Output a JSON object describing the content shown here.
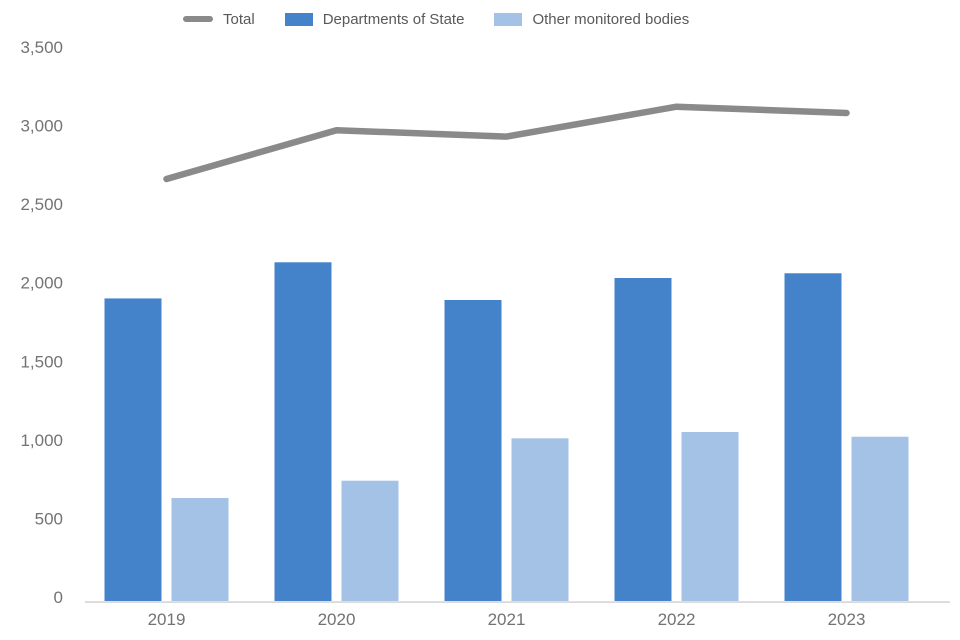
{
  "legend": {
    "items": [
      {
        "label": "Total",
        "swatch": "line",
        "color": "#8A8A8A"
      },
      {
        "label": "Departments of State",
        "swatch": "rect",
        "color": "#4483C9"
      },
      {
        "label": "Other monitored bodies",
        "swatch": "rect",
        "color": "#A3C2E6"
      }
    ]
  },
  "chart_data": {
    "type": "combo-bar-line",
    "categories": [
      "2019",
      "2020",
      "2021",
      "2022",
      "2023"
    ],
    "series": [
      {
        "name": "Total",
        "type": "line",
        "color": "#8A8A8A",
        "values": [
          2660,
          2970,
          2930,
          3120,
          3080
        ]
      },
      {
        "name": "Departments of State",
        "type": "bar",
        "color": "#4483C9",
        "values": [
          1900,
          2130,
          1890,
          2030,
          2060
        ]
      },
      {
        "name": "Other monitored bodies",
        "type": "bar",
        "color": "#A3C2E6",
        "values": [
          630,
          740,
          1010,
          1050,
          1020
        ]
      }
    ],
    "title": "",
    "xlabel": "",
    "ylabel": "",
    "ylim": [
      0,
      3500
    ],
    "ytick_step": 500,
    "ytick_labels": [
      "0",
      "500",
      "1,000",
      "1,500",
      "2,000",
      "2,500",
      "3,000",
      "3,500"
    ],
    "grid": false,
    "legend_position": "top",
    "axis_line_color": "#D9D9D9",
    "axis_text_color": "#737373"
  }
}
